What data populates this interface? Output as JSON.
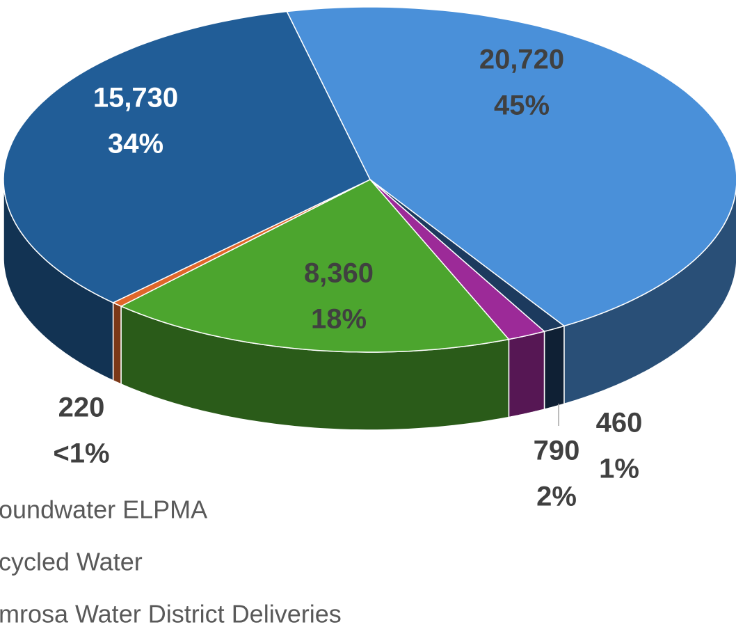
{
  "chart_data": {
    "type": "pie3d",
    "values": [
      20720,
      460,
      790,
      8360,
      220,
      15730
    ],
    "value_labels": [
      "20,720",
      "460",
      "790",
      "8,360",
      "220",
      "15,730"
    ],
    "percent_labels": [
      "45%",
      "1%",
      "2%",
      "18%",
      "<1%",
      "34%"
    ],
    "colors": [
      "#4a90d9",
      "#1c3a5e",
      "#9c2a98",
      "#4ca52e",
      "#e0662a",
      "#215d97"
    ],
    "legend_labels": [
      "oundwater ELPMA",
      "cycled Water",
      "mrosa Water District Deliveries"
    ]
  }
}
